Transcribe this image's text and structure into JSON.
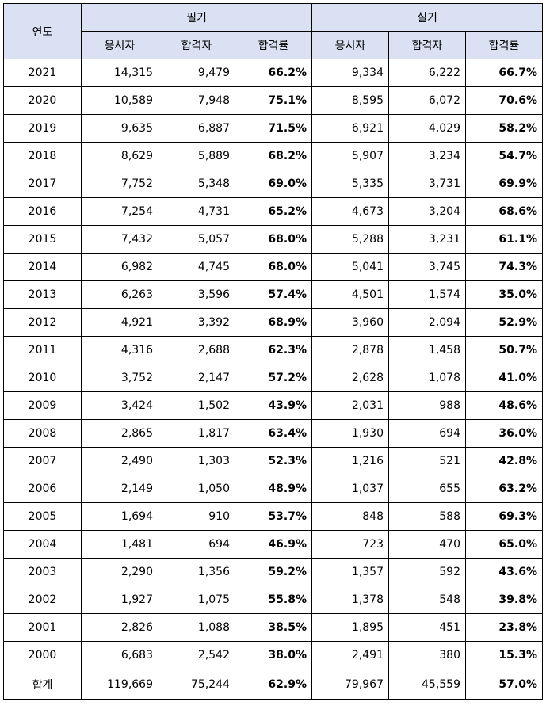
{
  "table": {
    "headers": {
      "year": "연도",
      "written": "필기",
      "practical": "실기",
      "applicants": "응시자",
      "passers": "합격자",
      "pass_rate": "합격률"
    },
    "rows": [
      {
        "year": "2021",
        "w_app": "14,315",
        "w_pass": "9,479",
        "w_rate": "66.2%",
        "p_app": "9,334",
        "p_pass": "6,222",
        "p_rate": "66.7%"
      },
      {
        "year": "2020",
        "w_app": "10,589",
        "w_pass": "7,948",
        "w_rate": "75.1%",
        "p_app": "8,595",
        "p_pass": "6,072",
        "p_rate": "70.6%"
      },
      {
        "year": "2019",
        "w_app": "9,635",
        "w_pass": "6,887",
        "w_rate": "71.5%",
        "p_app": "6,921",
        "p_pass": "4,029",
        "p_rate": "58.2%"
      },
      {
        "year": "2018",
        "w_app": "8,629",
        "w_pass": "5,889",
        "w_rate": "68.2%",
        "p_app": "5,907",
        "p_pass": "3,234",
        "p_rate": "54.7%"
      },
      {
        "year": "2017",
        "w_app": "7,752",
        "w_pass": "5,348",
        "w_rate": "69.0%",
        "p_app": "5,335",
        "p_pass": "3,731",
        "p_rate": "69.9%"
      },
      {
        "year": "2016",
        "w_app": "7,254",
        "w_pass": "4,731",
        "w_rate": "65.2%",
        "p_app": "4,673",
        "p_pass": "3,204",
        "p_rate": "68.6%"
      },
      {
        "year": "2015",
        "w_app": "7,432",
        "w_pass": "5,057",
        "w_rate": "68.0%",
        "p_app": "5,288",
        "p_pass": "3,231",
        "p_rate": "61.1%"
      },
      {
        "year": "2014",
        "w_app": "6,982",
        "w_pass": "4,745",
        "w_rate": "68.0%",
        "p_app": "5,041",
        "p_pass": "3,745",
        "p_rate": "74.3%"
      },
      {
        "year": "2013",
        "w_app": "6,263",
        "w_pass": "3,596",
        "w_rate": "57.4%",
        "p_app": "4,501",
        "p_pass": "1,574",
        "p_rate": "35.0%"
      },
      {
        "year": "2012",
        "w_app": "4,921",
        "w_pass": "3,392",
        "w_rate": "68.9%",
        "p_app": "3,960",
        "p_pass": "2,094",
        "p_rate": "52.9%"
      },
      {
        "year": "2011",
        "w_app": "4,316",
        "w_pass": "2,688",
        "w_rate": "62.3%",
        "p_app": "2,878",
        "p_pass": "1,458",
        "p_rate": "50.7%"
      },
      {
        "year": "2010",
        "w_app": "3,752",
        "w_pass": "2,147",
        "w_rate": "57.2%",
        "p_app": "2,628",
        "p_pass": "1,078",
        "p_rate": "41.0%"
      },
      {
        "year": "2009",
        "w_app": "3,424",
        "w_pass": "1,502",
        "w_rate": "43.9%",
        "p_app": "2,031",
        "p_pass": "988",
        "p_rate": "48.6%"
      },
      {
        "year": "2008",
        "w_app": "2,865",
        "w_pass": "1,817",
        "w_rate": "63.4%",
        "p_app": "1,930",
        "p_pass": "694",
        "p_rate": "36.0%"
      },
      {
        "year": "2007",
        "w_app": "2,490",
        "w_pass": "1,303",
        "w_rate": "52.3%",
        "p_app": "1,216",
        "p_pass": "521",
        "p_rate": "42.8%"
      },
      {
        "year": "2006",
        "w_app": "2,149",
        "w_pass": "1,050",
        "w_rate": "48.9%",
        "p_app": "1,037",
        "p_pass": "655",
        "p_rate": "63.2%"
      },
      {
        "year": "2005",
        "w_app": "1,694",
        "w_pass": "910",
        "w_rate": "53.7%",
        "p_app": "848",
        "p_pass": "588",
        "p_rate": "69.3%"
      },
      {
        "year": "2004",
        "w_app": "1,481",
        "w_pass": "694",
        "w_rate": "46.9%",
        "p_app": "723",
        "p_pass": "470",
        "p_rate": "65.0%"
      },
      {
        "year": "2003",
        "w_app": "2,290",
        "w_pass": "1,356",
        "w_rate": "59.2%",
        "p_app": "1,357",
        "p_pass": "592",
        "p_rate": "43.6%"
      },
      {
        "year": "2002",
        "w_app": "1,927",
        "w_pass": "1,075",
        "w_rate": "55.8%",
        "p_app": "1,378",
        "p_pass": "548",
        "p_rate": "39.8%"
      },
      {
        "year": "2001",
        "w_app": "2,826",
        "w_pass": "1,088",
        "w_rate": "38.5%",
        "p_app": "1,895",
        "p_pass": "451",
        "p_rate": "23.8%"
      },
      {
        "year": "2000",
        "w_app": "6,683",
        "w_pass": "2,542",
        "w_rate": "38.0%",
        "p_app": "2,491",
        "p_pass": "380",
        "p_rate": "15.3%"
      }
    ],
    "total": {
      "year": "합계",
      "w_app": "119,669",
      "w_pass": "75,244",
      "w_rate": "62.9%",
      "p_app": "79,967",
      "p_pass": "45,559",
      "p_rate": "57.0%"
    },
    "colors": {
      "header_bg": "#d9e1f2",
      "border": "#000000"
    }
  }
}
